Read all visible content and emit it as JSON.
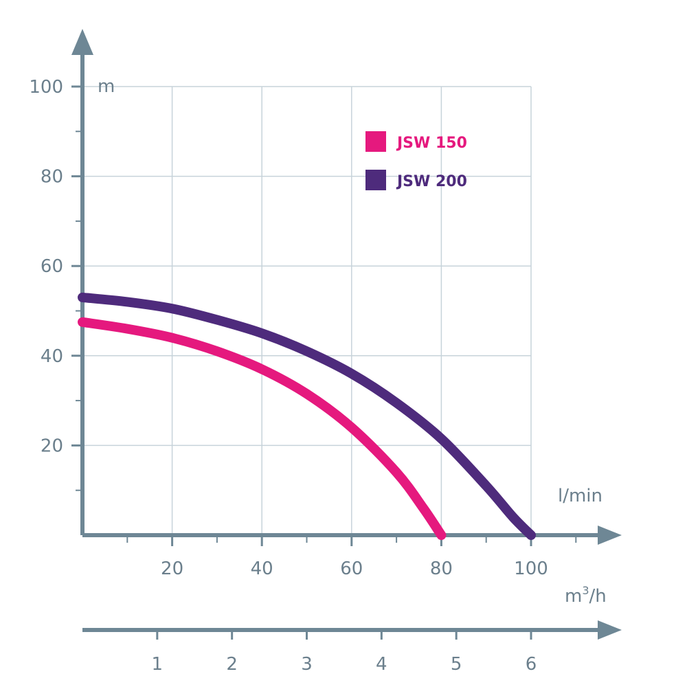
{
  "chart_data": {
    "type": "line",
    "ylabel": "m",
    "xlabel": "l/min",
    "xlabel2_base": "m",
    "xlabel2_sup": "3",
    "xlabel2_rest": "/h",
    "ylim": [
      0,
      100
    ],
    "xlim": [
      0,
      100
    ],
    "y_ticks": [
      "20",
      "40",
      "60",
      "80",
      "100"
    ],
    "x_ticks": [
      "20",
      "40",
      "60",
      "80",
      "100"
    ],
    "x2_ticks": [
      "1",
      "2",
      "3",
      "4",
      "5",
      "6"
    ],
    "grid": true,
    "legend_position": "top-right",
    "series": [
      {
        "name": "JSW 150",
        "color": "#e5197e",
        "points": [
          [
            0,
            47.5
          ],
          [
            10,
            46
          ],
          [
            20,
            44
          ],
          [
            30,
            41
          ],
          [
            40,
            37
          ],
          [
            50,
            31.5
          ],
          [
            60,
            24
          ],
          [
            70,
            14
          ],
          [
            76,
            6
          ],
          [
            80,
            0
          ]
        ]
      },
      {
        "name": "JSW 200",
        "color": "#4e2b7c",
        "points": [
          [
            0,
            53
          ],
          [
            10,
            52
          ],
          [
            20,
            50.5
          ],
          [
            30,
            48
          ],
          [
            40,
            45
          ],
          [
            50,
            41
          ],
          [
            60,
            36
          ],
          [
            70,
            29.5
          ],
          [
            80,
            21.5
          ],
          [
            90,
            11
          ],
          [
            96,
            4
          ],
          [
            100,
            0
          ]
        ]
      }
    ]
  }
}
